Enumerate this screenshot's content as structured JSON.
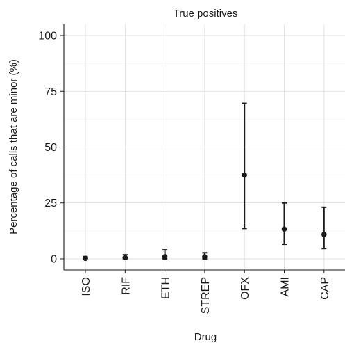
{
  "chart_data": {
    "type": "scatter",
    "title": "True positives",
    "xlabel": "Drug",
    "ylabel": "Percentage of calls that are minor (%)",
    "categories": [
      "ISO",
      "RIF",
      "ETH",
      "STREP",
      "OFX",
      "AMI",
      "CAP"
    ],
    "values": [
      0.2,
      0.5,
      0.9,
      0.9,
      37.5,
      13.3,
      10.9
    ],
    "error_low": [
      0.0,
      0.0,
      0.0,
      0.0,
      13.6,
      6.5,
      4.6
    ],
    "error_high": [
      1.0,
      1.8,
      4.0,
      2.7,
      69.6,
      25.0,
      23.1
    ],
    "ylim": [
      -5,
      105
    ],
    "yticks": [
      0,
      25,
      50,
      75,
      100
    ],
    "grid": true,
    "legend": "none"
  }
}
